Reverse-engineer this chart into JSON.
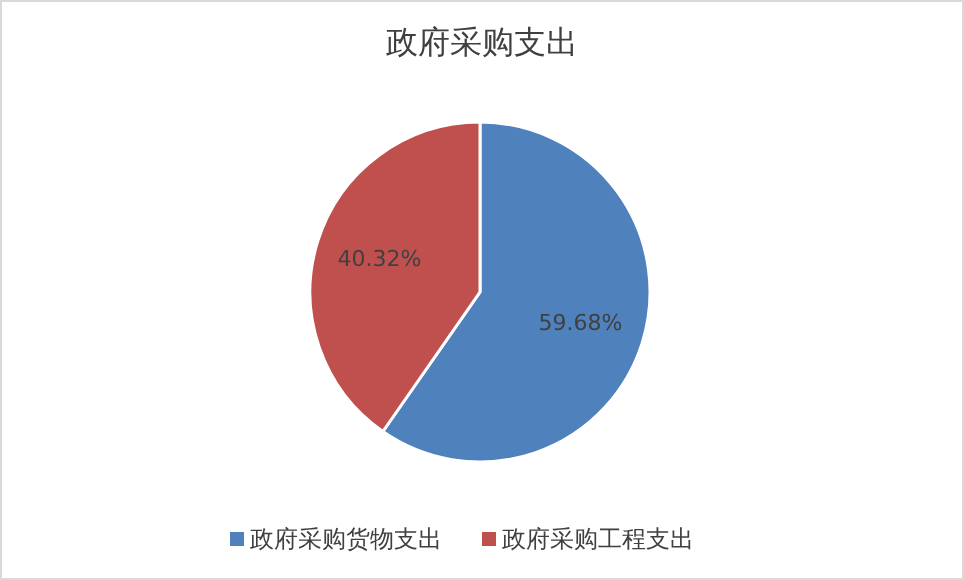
{
  "chart_data": {
    "type": "pie",
    "title": "政府采购支出",
    "categories": [
      "政府采购货物支出",
      "政府采购工程支出"
    ],
    "values": [
      59.68,
      40.32
    ],
    "colors": [
      "#4f81bd",
      "#c0504d"
    ],
    "value_labels": [
      "59.68%",
      "40.32%"
    ],
    "legend": "bottom"
  }
}
